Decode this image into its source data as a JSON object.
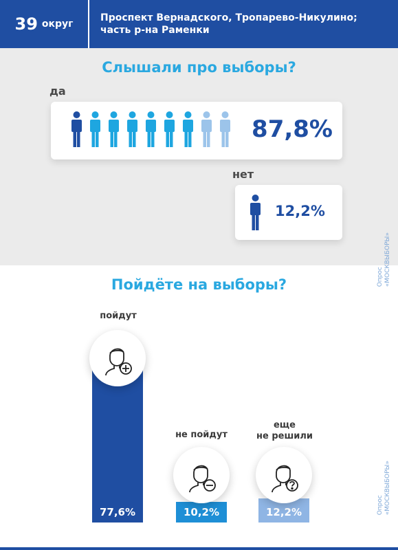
{
  "header": {
    "district_number": "39",
    "district_word": "округ",
    "region_line1": "Проспект Вернадского, Тропарево-Никулино;",
    "region_line2": "часть р-на Раменки"
  },
  "heard": {
    "question": "Слышали про выборы?",
    "yes_label": "да",
    "yes_value": "87,8%",
    "yes_icons": 9,
    "no_label": "нет",
    "no_value": "12,2%"
  },
  "source_line1": "Опрос",
  "source_line2": "«МОСКВЫБОРЫ»",
  "going": {
    "question": "Пойдёте на выборы?",
    "items": [
      {
        "label": "пойдут",
        "value": "77,6%",
        "fraction": 0.776,
        "color": "#1f4ea2",
        "icon": "person-plus-icon"
      },
      {
        "label": "не пойдут",
        "value": "10,2%",
        "fraction": 0.102,
        "color": "#1e8fd6",
        "icon": "person-minus-icon"
      },
      {
        "label_line1": "еще",
        "label_line2": "не решили",
        "value": "12,2%",
        "fraction": 0.122,
        "color": "#8fb5e4",
        "icon": "person-question-icon"
      }
    ]
  },
  "colors": {
    "header_bg": "#1f4ea2",
    "accent_title": "#2aa8e0",
    "person_dark": "#1f4ea2",
    "person_cyan": "#1ea6e0",
    "person_light": "#9cc4ea"
  }
}
